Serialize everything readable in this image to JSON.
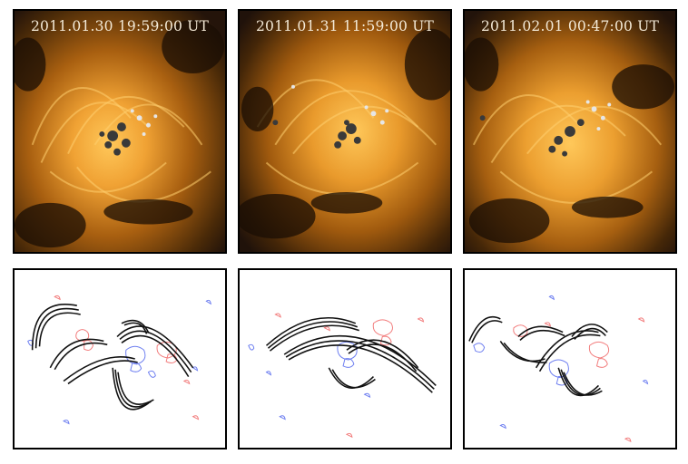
{
  "panels": [
    {
      "timestamp": "2011.01.30 19:59:00 UT"
    },
    {
      "timestamp": "2011.01.31 11:59:00 UT"
    },
    {
      "timestamp": "2011.02.01 00:47:00 UT"
    }
  ],
  "colors": {
    "euv_bright": "#f2a533",
    "euv_mid": "#b3690f",
    "euv_dark": "#2a1704",
    "positive_polarity": "#f27c7c",
    "negative_polarity": "#6d7ef0",
    "field_lines": "#111111"
  }
}
